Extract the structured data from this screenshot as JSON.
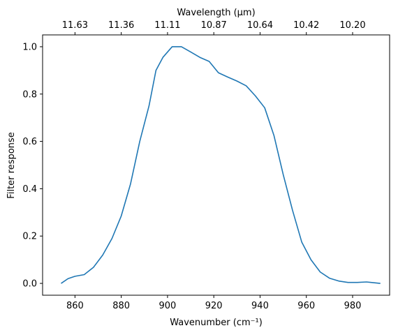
{
  "chart_data": {
    "type": "line",
    "xlabel": "Wavenumber (cm⁻¹)",
    "ylabel": "Filter response",
    "top_xlabel": "Wavelength (μm)",
    "xlim": [
      846,
      996
    ],
    "ylim": [
      -0.05,
      1.05
    ],
    "grid": false,
    "x_ticks": [
      860,
      880,
      900,
      920,
      940,
      960,
      980
    ],
    "y_ticks": [
      0.0,
      0.2,
      0.4,
      0.6,
      0.8,
      1.0
    ],
    "top_ticks": [
      {
        "wavenumber": 860.0,
        "label": "11.63"
      },
      {
        "wavenumber": 880.0,
        "label": "11.36"
      },
      {
        "wavenumber": 900.0,
        "label": "11.11"
      },
      {
        "wavenumber": 920.0,
        "label": "10.87"
      },
      {
        "wavenumber": 940.0,
        "label": "10.64"
      },
      {
        "wavenumber": 960.0,
        "label": "10.42"
      },
      {
        "wavenumber": 980.0,
        "label": "10.20"
      }
    ],
    "series": [
      {
        "color": "#1f77b4",
        "x": [
          854,
          857,
          860,
          864,
          868,
          872,
          876,
          880,
          884,
          888,
          892,
          895,
          898,
          902,
          906,
          910,
          914,
          918,
          922,
          926,
          930,
          934,
          938,
          942,
          946,
          950,
          954,
          958,
          962,
          966,
          970,
          974,
          978,
          982,
          986,
          988,
          992
        ],
        "y": [
          0.0,
          0.02,
          0.03,
          0.037,
          0.068,
          0.12,
          0.19,
          0.285,
          0.42,
          0.6,
          0.75,
          0.9,
          0.955,
          1.0,
          1.0,
          0.978,
          0.955,
          0.938,
          0.89,
          0.872,
          0.855,
          0.835,
          0.792,
          0.742,
          0.625,
          0.46,
          0.31,
          0.175,
          0.1,
          0.048,
          0.022,
          0.01,
          0.004,
          0.004,
          0.006,
          0.004,
          0.0
        ]
      }
    ]
  }
}
